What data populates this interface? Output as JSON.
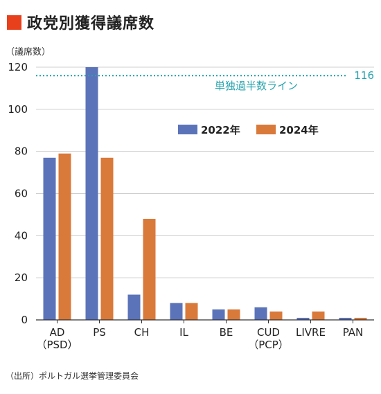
{
  "title": "政党別獲得議席数",
  "unit_label": "（議席数）",
  "source": "（出所）ポルトガル選挙管理委員会",
  "colors": {
    "accent": "#e8401c",
    "series_2022": "#5b73b8",
    "series_2024": "#d9793a",
    "reference": "#25a3ae"
  },
  "chart_data": {
    "type": "bar",
    "categories": [
      {
        "line1": "AD",
        "line2": "（PSD）"
      },
      {
        "line1": "PS",
        "line2": ""
      },
      {
        "line1": "CH",
        "line2": ""
      },
      {
        "line1": "IL",
        "line2": ""
      },
      {
        "line1": "BE",
        "line2": ""
      },
      {
        "line1": "CUD",
        "line2": "（PCP）"
      },
      {
        "line1": "LIVRE",
        "line2": ""
      },
      {
        "line1": "PAN",
        "line2": ""
      }
    ],
    "series": [
      {
        "name": "2022年",
        "values": [
          77,
          120,
          12,
          8,
          5,
          6,
          1,
          1
        ]
      },
      {
        "name": "2024年",
        "values": [
          79,
          77,
          48,
          8,
          5,
          4,
          4,
          1
        ]
      }
    ],
    "ylim": [
      0,
      120
    ],
    "yticks": [
      0,
      20,
      40,
      60,
      80,
      100,
      120
    ],
    "reference_line": {
      "value": 116,
      "value_label": "116",
      "label": "単独過半数ライン"
    },
    "grid": true,
    "legend_position": "upper-right"
  }
}
